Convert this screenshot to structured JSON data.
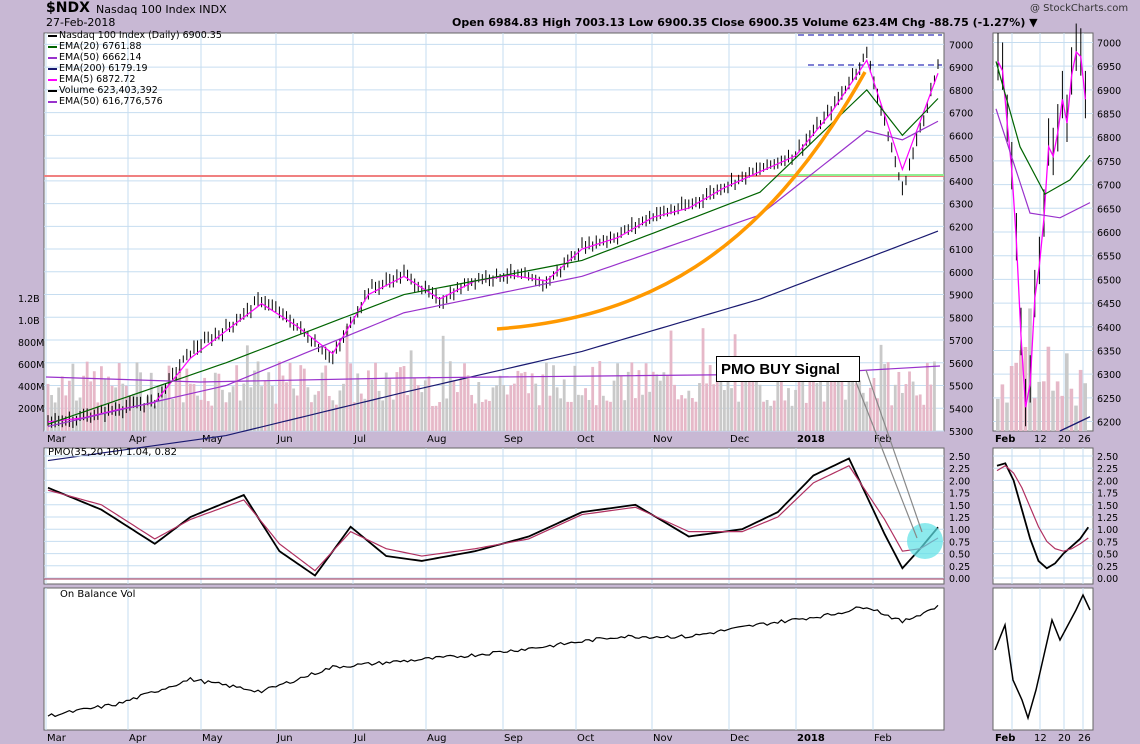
{
  "header": {
    "ticker": "$NDX",
    "name": "Nasdaq 100 Index INDX",
    "date": "27-Feb-2018",
    "stats": "Open 6984.83  High 7003.13  Low 6900.35  Close 6900.35  Volume 623.4M  Chg -88.75 (-1.27%) ▼",
    "credit": "@ StockCharts.com"
  },
  "legend": [
    {
      "text": "Nasdaq 100 Index (Daily) 6900.35",
      "color": "#000000"
    },
    {
      "text": "EMA(20) 6761.88",
      "color": "#006400"
    },
    {
      "text": "EMA(50) 6662.14",
      "color": "#9932cc"
    },
    {
      "text": "EMA(200) 6179.19",
      "color": "#191970"
    },
    {
      "text": "EMA(5) 6872.72",
      "color": "#ff00ff"
    },
    {
      "text": "Volume 623,403,392",
      "color": "#000000"
    },
    {
      "text": "EMA(50) 616,776,576",
      "color": "#9932cc"
    }
  ],
  "signal_label": "PMO BUY Signal",
  "pmo_label": "PMO(35,20,10) 1.04, 0.82",
  "obv_label": "On Balance Vol",
  "colors": {
    "panel_bg": "#ffffff",
    "outer_bg": "#c8b8d4",
    "grid": "#c6ddf0",
    "price": "#000000",
    "ema5": "#ff00ff",
    "ema20": "#006400",
    "ema50": "#9932cc",
    "ema200": "#191970",
    "volume_up": "#c9c9c9",
    "volume_down": "#e6b8c8",
    "pmo": "#000000",
    "pmo_signal": "#b03060",
    "hline_red": "#f08080",
    "hline_green": "#90ee90",
    "orange": "#ff9900"
  },
  "chart_data": [
    {
      "type": "line",
      "title": "Nasdaq 100 Index (Daily) 6900.35",
      "ylim": [
        5300,
        7050
      ],
      "y_ticks": [
        5300,
        5400,
        5500,
        5600,
        5700,
        5800,
        5900,
        6000,
        6100,
        6200,
        6300,
        6400,
        6500,
        6600,
        6700,
        6800,
        6900,
        7000
      ],
      "x_labels": [
        "Mar",
        "Apr",
        "May",
        "Jun",
        "Jul",
        "Aug",
        "Sep",
        "Oct",
        "Nov",
        "Dec",
        "2018",
        "Feb"
      ],
      "volume_ticks": [
        "200M",
        "400M",
        "600M",
        "800M",
        "1.0B",
        "1.2B"
      ],
      "series": [
        {
          "name": "Nasdaq 100 Index (Daily)",
          "x": [
            0,
            10,
            20,
            30,
            40,
            50,
            60,
            70,
            80,
            90,
            100,
            110,
            120,
            130,
            140,
            150,
            160,
            170,
            180,
            190,
            200,
            210,
            220,
            230,
            240,
            250
          ],
          "values": [
            5340,
            5360,
            5400,
            5430,
            5650,
            5750,
            5880,
            5760,
            5620,
            5920,
            5990,
            5870,
            5970,
            5990,
            5950,
            6110,
            6160,
            6250,
            6290,
            6380,
            6450,
            6520,
            6710,
            6960,
            6360,
            6900
          ]
        },
        {
          "name": "EMA(5)",
          "x": [
            0,
            10,
            20,
            30,
            40,
            50,
            60,
            70,
            80,
            90,
            100,
            110,
            120,
            130,
            140,
            150,
            160,
            170,
            180,
            190,
            200,
            210,
            220,
            230,
            240,
            250
          ],
          "values": [
            5340,
            5358,
            5395,
            5425,
            5620,
            5740,
            5860,
            5760,
            5640,
            5900,
            5980,
            5880,
            5960,
            5985,
            5960,
            6100,
            6150,
            6240,
            6280,
            6370,
            6440,
            6510,
            6700,
            6930,
            6450,
            6873
          ]
        },
        {
          "name": "EMA(20)",
          "x": [
            0,
            50,
            100,
            150,
            200,
            230,
            240,
            250
          ],
          "values": [
            5330,
            5600,
            5900,
            6050,
            6350,
            6800,
            6600,
            6762
          ]
        },
        {
          "name": "EMA(50)",
          "x": [
            0,
            50,
            100,
            150,
            200,
            230,
            240,
            250
          ],
          "values": [
            5320,
            5500,
            5820,
            5980,
            6250,
            6620,
            6580,
            6662
          ]
        },
        {
          "name": "EMA(200)",
          "x": [
            0,
            50,
            100,
            150,
            200,
            250
          ],
          "values": [
            5170,
            5280,
            5470,
            5650,
            5880,
            6179
          ]
        }
      ]
    },
    {
      "type": "line",
      "title": "PMO(35,20,10) 1.04, 0.82",
      "ylim": [
        0,
        2.5
      ],
      "y_ticks": [
        0,
        0.25,
        0.5,
        0.75,
        1.0,
        1.25,
        1.5,
        1.75,
        2.0,
        2.25,
        2.5
      ],
      "series": [
        {
          "name": "PMO",
          "x": [
            0,
            15,
            30,
            40,
            55,
            65,
            75,
            85,
            95,
            105,
            120,
            135,
            150,
            165,
            180,
            195,
            205,
            215,
            225,
            235,
            240,
            245,
            250
          ],
          "values": [
            1.85,
            1.4,
            0.7,
            1.25,
            1.7,
            0.55,
            0.05,
            1.05,
            0.45,
            0.35,
            0.55,
            0.85,
            1.35,
            1.5,
            0.85,
            1.0,
            1.35,
            2.1,
            2.45,
            0.9,
            0.2,
            0.6,
            1.04
          ]
        },
        {
          "name": "Signal",
          "x": [
            0,
            15,
            30,
            40,
            55,
            65,
            75,
            85,
            95,
            105,
            120,
            135,
            150,
            165,
            180,
            195,
            205,
            215,
            225,
            235,
            240,
            245,
            250
          ],
          "values": [
            1.8,
            1.5,
            0.8,
            1.2,
            1.6,
            0.7,
            0.15,
            0.95,
            0.6,
            0.45,
            0.6,
            0.8,
            1.3,
            1.45,
            0.95,
            0.95,
            1.25,
            1.95,
            2.3,
            1.2,
            0.55,
            0.6,
            0.82
          ]
        }
      ]
    },
    {
      "type": "line",
      "title": "On Balance Vol",
      "series": [
        {
          "name": "OBV",
          "x": [
            0,
            20,
            40,
            60,
            80,
            100,
            120,
            140,
            160,
            180,
            200,
            220,
            230,
            240,
            250
          ],
          "values": [
            0.05,
            0.15,
            0.35,
            0.25,
            0.45,
            0.5,
            0.55,
            0.62,
            0.7,
            0.7,
            0.8,
            0.88,
            0.95,
            0.82,
            0.95
          ]
        }
      ]
    }
  ]
}
